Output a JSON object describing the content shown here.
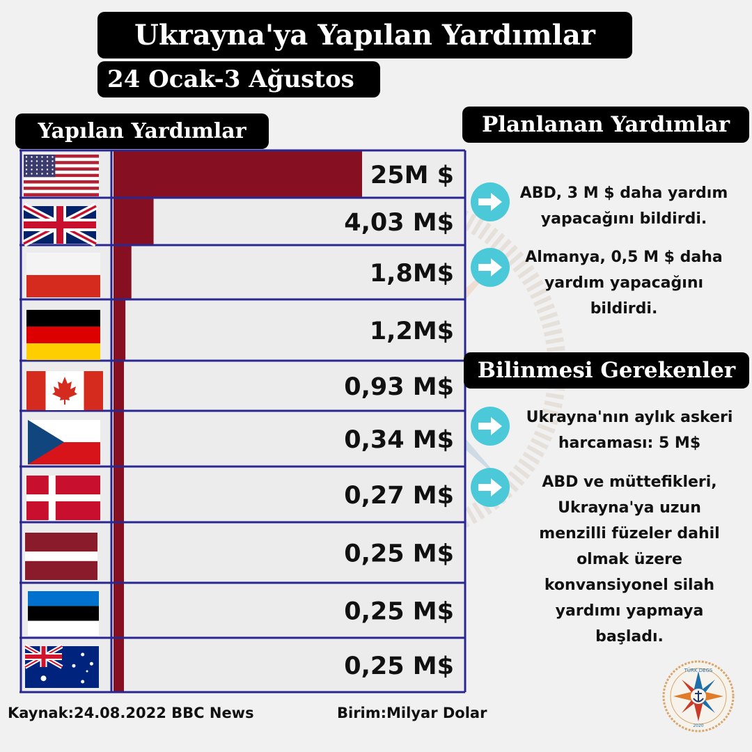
{
  "title": "Ukrayna'ya Yapılan Yardımlar",
  "subtitle": "24 Ocak-3 Ağustos",
  "chart_heading": "Yapılan Yardımlar",
  "planned": {
    "heading": "Planlanan Yardımlar",
    "items": [
      "ABD, 3 M $ daha yardım\nyapacağını bildirdi.",
      "Almanya, 0,5 M $ daha\nyardım yapacağını\nbildirdi."
    ]
  },
  "facts": {
    "heading": "Bilinmesi Gerekenler",
    "items": [
      "Ukrayna'nın aylık askeri\nharcaması: 5 M$",
      "ABD ve müttefikleri,\nUkrayna'ya uzun\nmenzilli füzeler dahil\nolmak üzere\nkonvansiyonel silah\nyardımı yapmaya\nbaşladı."
    ]
  },
  "footer": {
    "source": "Kaynak:24.08.2022 BBC News",
    "unit": "Birim:Milyar Dolar"
  },
  "logo_text": {
    "top": "TÜRK DEGS",
    "bottom": "2020"
  },
  "watermark_text": "TÜRK DEGS",
  "colors": {
    "bar": "#861022",
    "grid": "#2a2890",
    "arrow": "#4bc9d8",
    "pill": "#000000"
  },
  "chart_data": {
    "type": "bar",
    "orientation": "horizontal",
    "title": "Yapılan Yardımlar",
    "unit": "Birim:Milyar Dolar",
    "categories": [
      {
        "flag": "usa-flag-icon",
        "label": "25M $",
        "value": 25
      },
      {
        "flag": "uk-flag-icon",
        "label": "4,03 M$",
        "value": 4.03
      },
      {
        "flag": "poland-flag-icon",
        "label": "1,8M$",
        "value": 1.8
      },
      {
        "flag": "germany-flag-icon",
        "label": "1,2M$",
        "value": 1.2
      },
      {
        "flag": "canada-flag-icon",
        "label": "0,93 M$",
        "value": 0.93
      },
      {
        "flag": "czechia-flag-icon",
        "label": "0,34 M$",
        "value": 0.34
      },
      {
        "flag": "denmark-flag-icon",
        "label": "0,27 M$",
        "value": 0.27
      },
      {
        "flag": "latvia-flag-icon",
        "label": "0,25 M$",
        "value": 0.25
      },
      {
        "flag": "estonia-flag-icon",
        "label": "0,25 M$",
        "value": 0.25
      },
      {
        "flag": "australia-flag-icon",
        "label": "0,25 M$",
        "value": 0.25
      }
    ]
  }
}
